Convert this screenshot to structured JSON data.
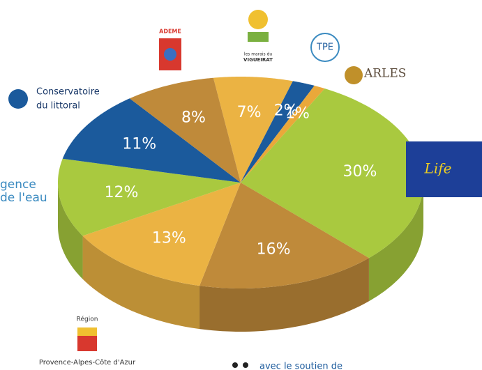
{
  "chart_data": {
    "type": "pie",
    "values": [
      7,
      2,
      1,
      30,
      16,
      13,
      12,
      11,
      8
    ],
    "value_labels": [
      "7%",
      "2%",
      "1%",
      "30%",
      "16%",
      "13%",
      "12%",
      "11%",
      "8%"
    ],
    "colors": [
      "#ebb343",
      "#1b5a9c",
      "#eaa83a",
      "#a9c93f",
      "#bf8a3a",
      "#ebb343",
      "#a9c93f",
      "#1b5a9c",
      "#bf8a3a"
    ]
  },
  "logos": {
    "conservatoire": [
      "Conservatoire",
      "du littoral"
    ],
    "ademe": "ADEME",
    "vigueirat": [
      "les marais du",
      "VIGUEIRAT"
    ],
    "tpe": "TPE",
    "arles": "ARLES",
    "life": "Life",
    "agence": [
      "gence",
      "de l'eau"
    ],
    "region": [
      "Région",
      "Provence-Alpes-Côte d'Azur"
    ],
    "soutien": "avec le soutien de"
  }
}
